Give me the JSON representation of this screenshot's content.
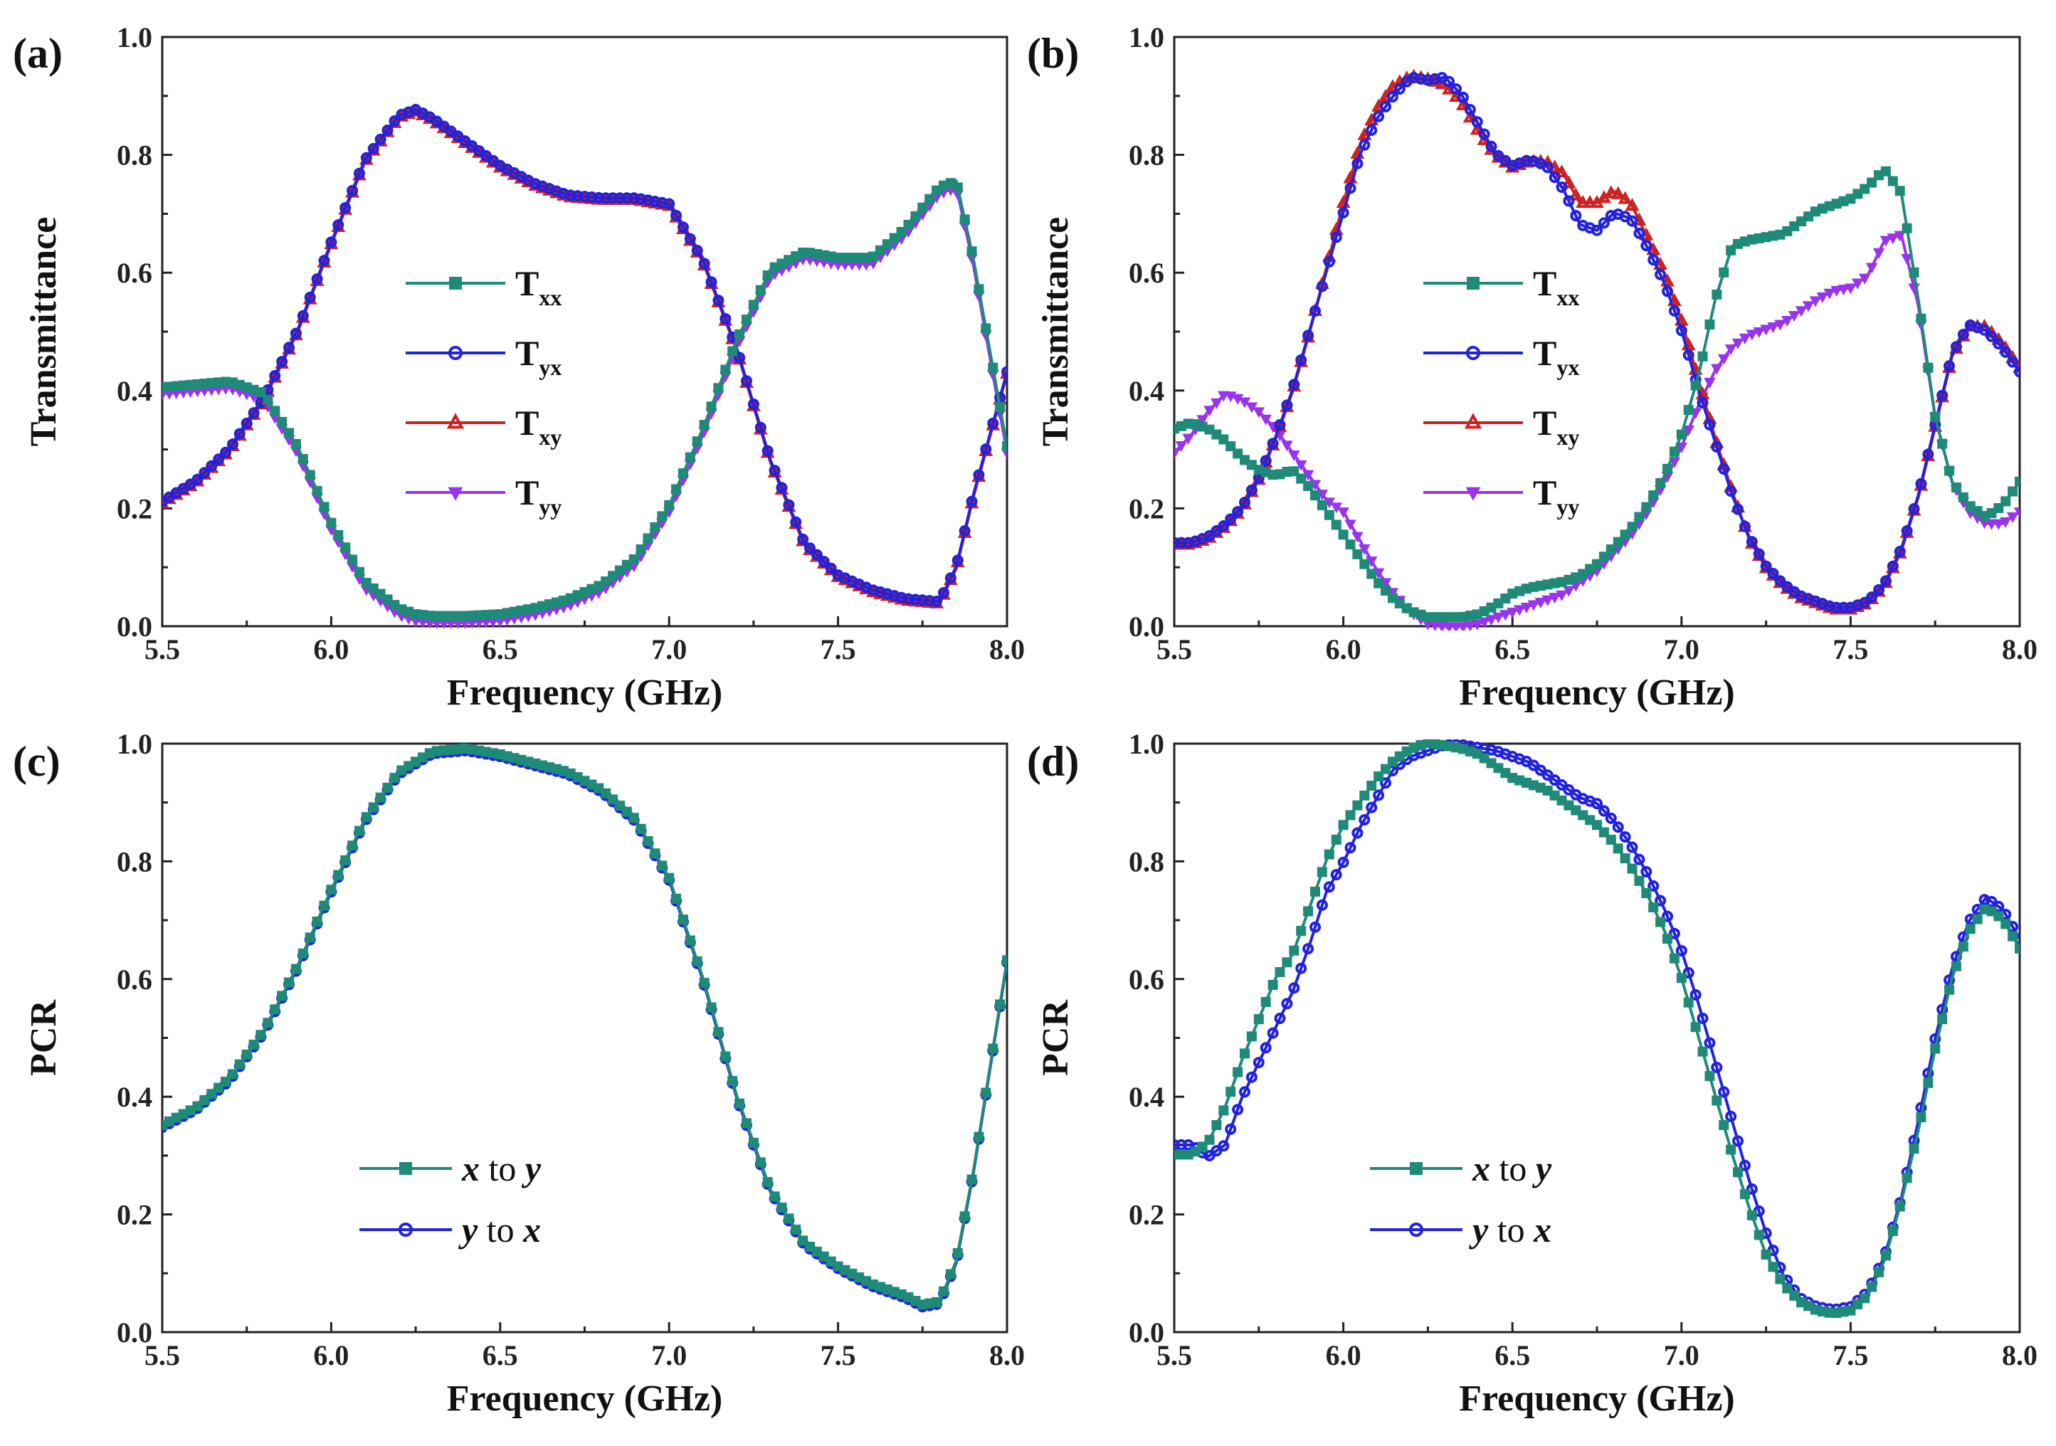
{
  "chart_data": [
    {
      "type": "line",
      "panel_label": "(a)",
      "xlabel": "Frequency (GHz)",
      "ylabel": "Transmittance",
      "xlim": [
        5.5,
        8.0
      ],
      "ylim": [
        0.0,
        1.0
      ],
      "xticks": [
        "5.5",
        "6.0",
        "6.5",
        "7.0",
        "7.5",
        "8.0"
      ],
      "yticks": [
        "0.0",
        "0.2",
        "0.4",
        "0.6",
        "0.8",
        "1.0"
      ],
      "legend_position": "center",
      "x": [
        5.5,
        5.6,
        5.7,
        5.8,
        5.9,
        6.0,
        6.1,
        6.2,
        6.25,
        6.3,
        6.4,
        6.5,
        6.6,
        6.7,
        6.8,
        6.9,
        7.0,
        7.1,
        7.2,
        7.3,
        7.4,
        7.5,
        7.6,
        7.7,
        7.8,
        7.85,
        7.9,
        8.0
      ],
      "series": [
        {
          "name": "Txx",
          "base": "T",
          "sub": "xx",
          "color": "#1f8a78",
          "marker": "square",
          "values": [
            0.4,
            0.405,
            0.41,
            0.39,
            0.3,
            0.17,
            0.07,
            0.025,
            0.015,
            0.012,
            0.012,
            0.015,
            0.025,
            0.04,
            0.065,
            0.11,
            0.2,
            0.33,
            0.48,
            0.6,
            0.63,
            0.62,
            0.62,
            0.67,
            0.74,
            0.75,
            0.62,
            0.3
          ]
        },
        {
          "name": "Tyx",
          "base": "T",
          "sub": "yx",
          "color": "#2222dd",
          "marker": "circle",
          "values": [
            0.21,
            0.245,
            0.3,
            0.385,
            0.5,
            0.65,
            0.79,
            0.865,
            0.875,
            0.86,
            0.82,
            0.78,
            0.75,
            0.73,
            0.725,
            0.725,
            0.715,
            0.62,
            0.47,
            0.28,
            0.14,
            0.085,
            0.06,
            0.045,
            0.04,
            0.1,
            0.22,
            0.43
          ]
        },
        {
          "name": "Txy",
          "base": "T",
          "sub": "xy",
          "color": "#cc2222",
          "marker": "triangle-up",
          "values": [
            0.21,
            0.245,
            0.3,
            0.385,
            0.5,
            0.65,
            0.79,
            0.865,
            0.875,
            0.86,
            0.82,
            0.78,
            0.75,
            0.73,
            0.725,
            0.725,
            0.715,
            0.62,
            0.47,
            0.28,
            0.14,
            0.085,
            0.06,
            0.045,
            0.04,
            0.1,
            0.22,
            0.43
          ]
        },
        {
          "name": "Tyy",
          "base": "T",
          "sub": "yy",
          "color": "#9933ee",
          "marker": "triangle-down",
          "values": [
            0.4,
            0.405,
            0.41,
            0.39,
            0.3,
            0.17,
            0.07,
            0.025,
            0.015,
            0.012,
            0.012,
            0.015,
            0.025,
            0.04,
            0.065,
            0.11,
            0.2,
            0.33,
            0.48,
            0.6,
            0.63,
            0.62,
            0.62,
            0.67,
            0.74,
            0.75,
            0.62,
            0.3
          ]
        }
      ]
    },
    {
      "type": "line",
      "panel_label": "(b)",
      "xlabel": "Frequency (GHz)",
      "ylabel": "Transmittance",
      "xlim": [
        5.5,
        8.0
      ],
      "ylim": [
        0.0,
        1.0
      ],
      "xticks": [
        "5.5",
        "6.0",
        "6.5",
        "7.0",
        "7.5",
        "8.0"
      ],
      "yticks": [
        "0.0",
        "0.2",
        "0.4",
        "0.6",
        "0.8",
        "1.0"
      ],
      "legend_position": "center-right",
      "x": [
        5.5,
        5.55,
        5.6,
        5.65,
        5.7,
        5.75,
        5.8,
        5.85,
        5.9,
        5.95,
        6.0,
        6.05,
        6.1,
        6.15,
        6.2,
        6.25,
        6.3,
        6.35,
        6.4,
        6.45,
        6.5,
        6.55,
        6.6,
        6.65,
        6.7,
        6.75,
        6.8,
        6.85,
        6.9,
        6.95,
        7.0,
        7.05,
        7.1,
        7.15,
        7.2,
        7.25,
        7.3,
        7.35,
        7.4,
        7.45,
        7.5,
        7.55,
        7.6,
        7.65,
        7.7,
        7.75,
        7.8,
        7.85,
        7.9,
        7.95,
        8.0
      ],
      "series": [
        {
          "name": "Txx",
          "base": "T",
          "sub": "xx",
          "color": "#1f8a78",
          "marker": "square",
          "values": [
            0.33,
            0.34,
            0.33,
            0.31,
            0.28,
            0.26,
            0.25,
            0.26,
            0.23,
            0.19,
            0.15,
            0.11,
            0.07,
            0.04,
            0.02,
            0.01,
            0.01,
            0.01,
            0.015,
            0.03,
            0.05,
            0.06,
            0.065,
            0.07,
            0.08,
            0.1,
            0.13,
            0.16,
            0.2,
            0.25,
            0.32,
            0.42,
            0.55,
            0.64,
            0.65,
            0.655,
            0.66,
            0.68,
            0.7,
            0.71,
            0.72,
            0.74,
            0.77,
            0.73,
            0.55,
            0.35,
            0.24,
            0.2,
            0.18,
            0.2,
            0.24
          ]
        },
        {
          "name": "Tyx",
          "base": "T",
          "sub": "yx",
          "color": "#2222dd",
          "marker": "circle",
          "values": [
            0.14,
            0.14,
            0.15,
            0.17,
            0.2,
            0.25,
            0.32,
            0.4,
            0.5,
            0.6,
            0.7,
            0.8,
            0.86,
            0.9,
            0.93,
            0.925,
            0.93,
            0.9,
            0.85,
            0.8,
            0.78,
            0.79,
            0.78,
            0.74,
            0.68,
            0.67,
            0.7,
            0.69,
            0.64,
            0.58,
            0.5,
            0.4,
            0.31,
            0.22,
            0.15,
            0.1,
            0.07,
            0.05,
            0.04,
            0.03,
            0.03,
            0.04,
            0.07,
            0.13,
            0.22,
            0.34,
            0.46,
            0.51,
            0.5,
            0.47,
            0.43
          ]
        },
        {
          "name": "Txy",
          "base": "T",
          "sub": "xy",
          "color": "#cc2222",
          "marker": "triangle-up",
          "values": [
            0.14,
            0.14,
            0.15,
            0.17,
            0.2,
            0.25,
            0.32,
            0.4,
            0.5,
            0.61,
            0.72,
            0.82,
            0.88,
            0.92,
            0.935,
            0.93,
            0.92,
            0.89,
            0.84,
            0.8,
            0.78,
            0.79,
            0.79,
            0.77,
            0.72,
            0.72,
            0.74,
            0.72,
            0.66,
            0.6,
            0.52,
            0.42,
            0.32,
            0.23,
            0.15,
            0.1,
            0.07,
            0.05,
            0.04,
            0.03,
            0.03,
            0.04,
            0.07,
            0.13,
            0.22,
            0.34,
            0.46,
            0.51,
            0.51,
            0.48,
            0.44
          ]
        },
        {
          "name": "Tyy",
          "base": "T",
          "sub": "yy",
          "color": "#9933ee",
          "marker": "triangle-down",
          "values": [
            0.3,
            0.33,
            0.37,
            0.4,
            0.39,
            0.37,
            0.34,
            0.3,
            0.26,
            0.22,
            0.2,
            0.15,
            0.1,
            0.06,
            0.03,
            0.01,
            0.005,
            0.005,
            0.01,
            0.02,
            0.03,
            0.04,
            0.05,
            0.06,
            0.08,
            0.1,
            0.13,
            0.16,
            0.2,
            0.25,
            0.31,
            0.38,
            0.44,
            0.48,
            0.5,
            0.51,
            0.52,
            0.54,
            0.56,
            0.575,
            0.58,
            0.6,
            0.66,
            0.67,
            0.55,
            0.36,
            0.25,
            0.2,
            0.18,
            0.18,
            0.2
          ]
        }
      ]
    },
    {
      "type": "line",
      "panel_label": "(c)",
      "xlabel": "Frequency (GHz)",
      "ylabel": "PCR",
      "xlim": [
        5.5,
        8.0
      ],
      "ylim": [
        0.0,
        1.0
      ],
      "xticks": [
        "5.5",
        "6.0",
        "6.5",
        "7.0",
        "7.5",
        "8.0"
      ],
      "yticks": [
        "0.0",
        "0.2",
        "0.4",
        "0.6",
        "0.8",
        "1.0"
      ],
      "legend_position": "bottom-center",
      "x": [
        5.5,
        5.6,
        5.7,
        5.8,
        5.9,
        6.0,
        6.1,
        6.2,
        6.3,
        6.4,
        6.5,
        6.6,
        6.7,
        6.8,
        6.9,
        7.0,
        7.1,
        7.2,
        7.3,
        7.4,
        7.5,
        7.6,
        7.7,
        7.75,
        7.8,
        7.85,
        7.9,
        8.0
      ],
      "series": [
        {
          "name": "x to y",
          "var1": "x",
          "conn": " to ",
          "var2": "y",
          "color": "#1f8a78",
          "marker": "square",
          "values": [
            0.35,
            0.38,
            0.43,
            0.51,
            0.62,
            0.75,
            0.87,
            0.95,
            0.985,
            0.99,
            0.98,
            0.965,
            0.95,
            0.92,
            0.87,
            0.77,
            0.6,
            0.4,
            0.24,
            0.15,
            0.11,
            0.08,
            0.06,
            0.045,
            0.05,
            0.12,
            0.27,
            0.63
          ]
        },
        {
          "name": "y to x",
          "var1": "y",
          "conn": " to ",
          "var2": "x",
          "color": "#2222dd",
          "marker": "circle",
          "values": [
            0.35,
            0.38,
            0.43,
            0.51,
            0.62,
            0.75,
            0.87,
            0.95,
            0.985,
            0.99,
            0.98,
            0.965,
            0.95,
            0.92,
            0.87,
            0.77,
            0.6,
            0.4,
            0.24,
            0.15,
            0.11,
            0.08,
            0.06,
            0.045,
            0.05,
            0.12,
            0.27,
            0.63
          ]
        }
      ]
    },
    {
      "type": "line",
      "panel_label": "(d)",
      "xlabel": "Frequency (GHz)",
      "ylabel": "PCR",
      "xlim": [
        5.5,
        8.0
      ],
      "ylim": [
        0.0,
        1.0
      ],
      "xticks": [
        "5.5",
        "6.0",
        "6.5",
        "7.0",
        "7.5",
        "8.0"
      ],
      "yticks": [
        "0.0",
        "0.2",
        "0.4",
        "0.6",
        "0.8",
        "1.0"
      ],
      "legend_position": "bottom-center",
      "x": [
        5.5,
        5.55,
        5.6,
        5.65,
        5.7,
        5.75,
        5.8,
        5.85,
        5.9,
        5.95,
        6.0,
        6.05,
        6.1,
        6.15,
        6.2,
        6.25,
        6.3,
        6.35,
        6.4,
        6.45,
        6.5,
        6.55,
        6.6,
        6.65,
        6.7,
        6.75,
        6.8,
        6.85,
        6.9,
        6.95,
        7.0,
        7.05,
        7.1,
        7.15,
        7.2,
        7.25,
        7.3,
        7.35,
        7.4,
        7.45,
        7.5,
        7.55,
        7.6,
        7.65,
        7.7,
        7.75,
        7.8,
        7.85,
        7.9,
        7.95,
        8.0
      ],
      "series": [
        {
          "name": "x to y",
          "var1": "x",
          "conn": " to ",
          "var2": "y",
          "color": "#1f8a78",
          "marker": "square",
          "values": [
            0.3,
            0.3,
            0.32,
            0.38,
            0.46,
            0.53,
            0.6,
            0.64,
            0.72,
            0.8,
            0.86,
            0.9,
            0.94,
            0.97,
            0.99,
            1.0,
            0.995,
            0.99,
            0.98,
            0.96,
            0.94,
            0.93,
            0.92,
            0.9,
            0.88,
            0.86,
            0.83,
            0.79,
            0.74,
            0.68,
            0.6,
            0.5,
            0.4,
            0.3,
            0.21,
            0.13,
            0.08,
            0.05,
            0.035,
            0.03,
            0.035,
            0.06,
            0.12,
            0.22,
            0.34,
            0.48,
            0.6,
            0.68,
            0.72,
            0.7,
            0.65
          ]
        },
        {
          "name": "y to x",
          "var1": "y",
          "conn": " to ",
          "var2": "x",
          "color": "#2222dd",
          "marker": "circle",
          "values": [
            0.32,
            0.32,
            0.3,
            0.32,
            0.4,
            0.46,
            0.52,
            0.58,
            0.66,
            0.75,
            0.8,
            0.86,
            0.91,
            0.96,
            0.98,
            0.99,
            1.0,
            1.0,
            0.995,
            0.99,
            0.98,
            0.97,
            0.95,
            0.93,
            0.91,
            0.9,
            0.87,
            0.83,
            0.78,
            0.72,
            0.65,
            0.56,
            0.46,
            0.36,
            0.26,
            0.17,
            0.1,
            0.06,
            0.045,
            0.04,
            0.045,
            0.07,
            0.13,
            0.23,
            0.36,
            0.5,
            0.62,
            0.7,
            0.74,
            0.72,
            0.67
          ]
        }
      ]
    }
  ]
}
